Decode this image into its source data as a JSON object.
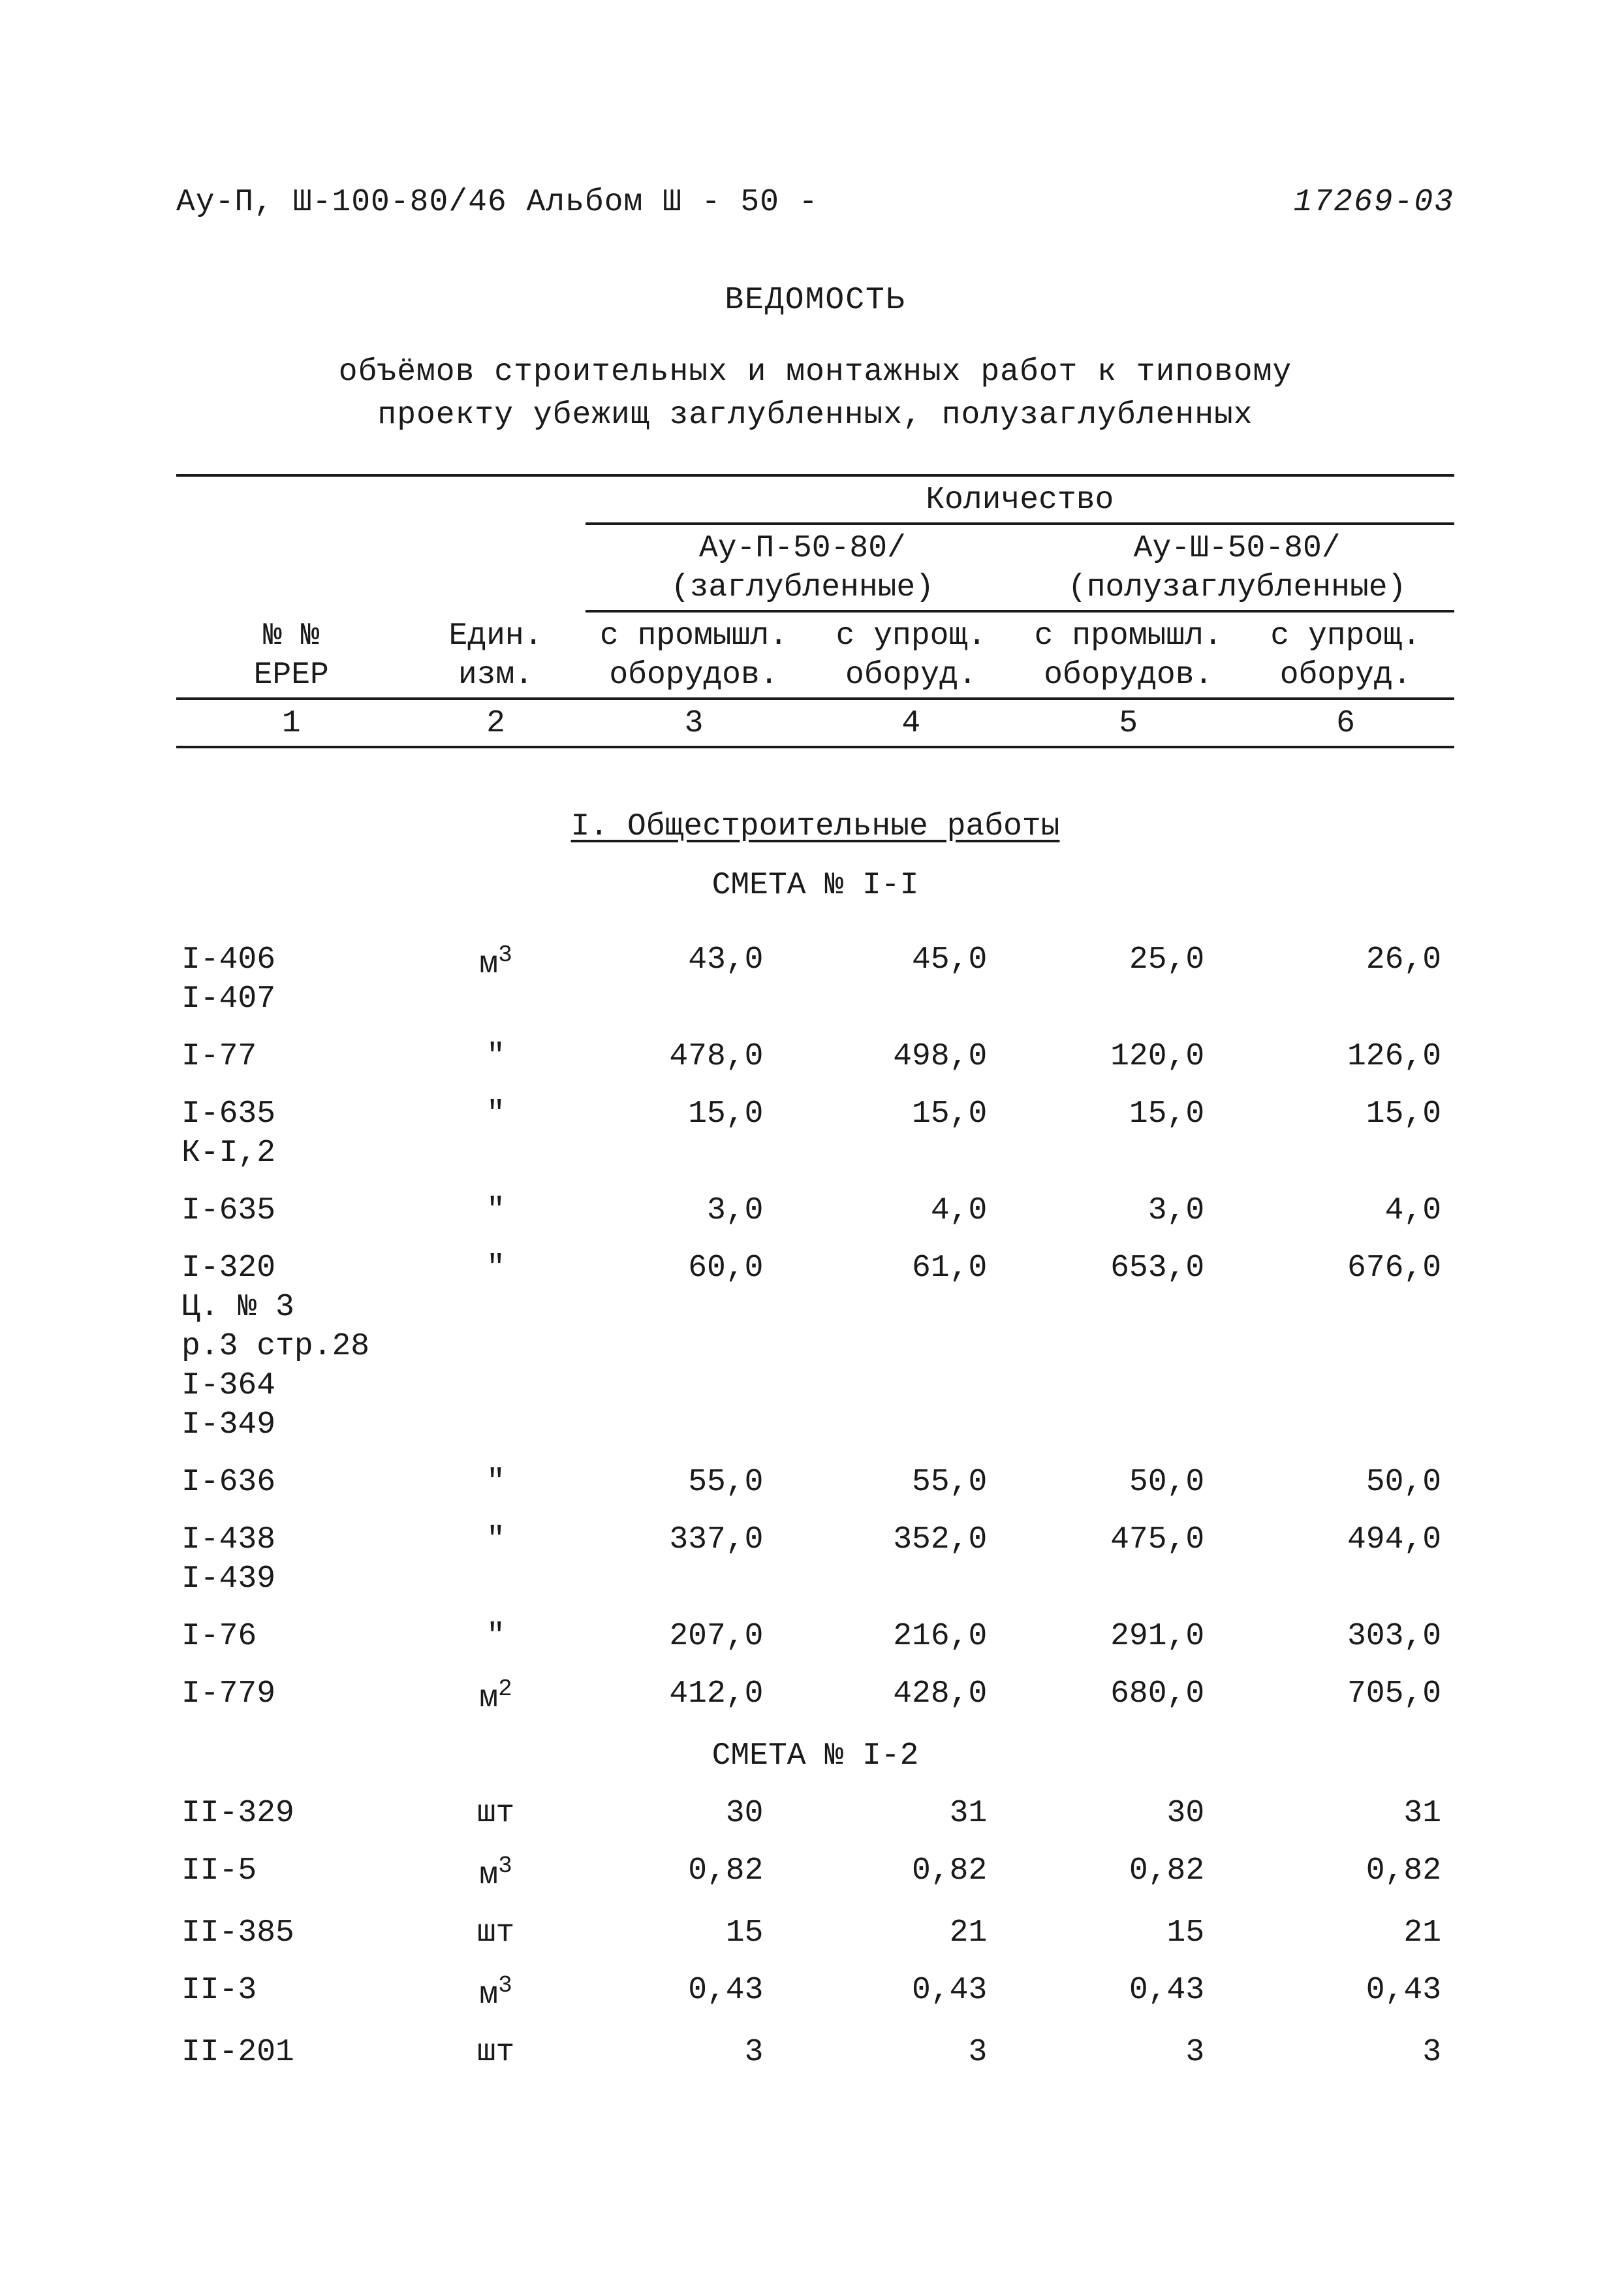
{
  "header": {
    "left": "Ау-П, Ш-100-80/46   Альбом Ш    -  50  -",
    "right": "17269-03"
  },
  "title": "ВЕДОМОСТЬ",
  "subtitle1": "объёмов строительных и монтажных работ к типовому",
  "subtitle2": "проекту убежищ заглубленных, полузаглубленных",
  "columns_header": {
    "col1": "№ №\nЕРЕР",
    "col2": "Един.\nизм.",
    "qty": "Количество",
    "group1_l1": "Ау-П-50-80/",
    "group1_l2": "(заглубленные)",
    "group2_l1": "Ау-Ш-50-80/",
    "group2_l2": "(полузаглубленные)",
    "sub_a": "с промышл.\nоборудов.",
    "sub_b": "с упрощ.\nоборуд.",
    "nums": [
      "1",
      "2",
      "3",
      "4",
      "5",
      "6"
    ]
  },
  "section1": {
    "title": "I. Общестроительные работы",
    "smeta1": "СМЕТА № I-I",
    "smeta2": "СМЕТА № I-2"
  },
  "rows1": [
    {
      "id": "I-406\nI-407",
      "unit": "м3",
      "v": [
        "43,0",
        "45,0",
        "25,0",
        "26,0"
      ]
    },
    {
      "id": "I-77",
      "unit": "\"",
      "v": [
        "478,0",
        "498,0",
        "120,0",
        "126,0"
      ]
    },
    {
      "id": "I-635\nК-I,2",
      "unit": "\"",
      "v": [
        "15,0",
        "15,0",
        "15,0",
        "15,0"
      ]
    },
    {
      "id": "I-635",
      "unit": "\"",
      "v": [
        "3,0",
        "4,0",
        "3,0",
        "4,0"
      ]
    },
    {
      "id": "I-320\nЦ. № 3\nр.3 стр.28\nI-364\nI-349",
      "unit": "\"",
      "v": [
        "60,0",
        "61,0",
        "653,0",
        "676,0"
      ]
    },
    {
      "id": "I-636",
      "unit": "\"",
      "v": [
        "55,0",
        "55,0",
        "50,0",
        "50,0"
      ]
    },
    {
      "id": "I-438\nI-439",
      "unit": "\"",
      "v": [
        "337,0",
        "352,0",
        "475,0",
        "494,0"
      ]
    },
    {
      "id": "I-76",
      "unit": "\"",
      "v": [
        "207,0",
        "216,0",
        "291,0",
        "303,0"
      ]
    },
    {
      "id": "I-779",
      "unit": "м2",
      "v": [
        "412,0",
        "428,0",
        "680,0",
        "705,0"
      ]
    }
  ],
  "rows2": [
    {
      "id": "II-329",
      "unit": "шт",
      "v": [
        "30",
        "31",
        "30",
        "31"
      ]
    },
    {
      "id": "II-5",
      "unit": "м3",
      "v": [
        "0,82",
        "0,82",
        "0,82",
        "0,82"
      ]
    },
    {
      "id": "II-385",
      "unit": "шт",
      "v": [
        "15",
        "21",
        "15",
        "21"
      ]
    },
    {
      "id": "II-3",
      "unit": "м3",
      "v": [
        "0,43",
        "0,43",
        "0,43",
        "0,43"
      ]
    },
    {
      "id": "II-201",
      "unit": "шт",
      "v": [
        "3",
        "3",
        "3",
        "3"
      ]
    }
  ]
}
